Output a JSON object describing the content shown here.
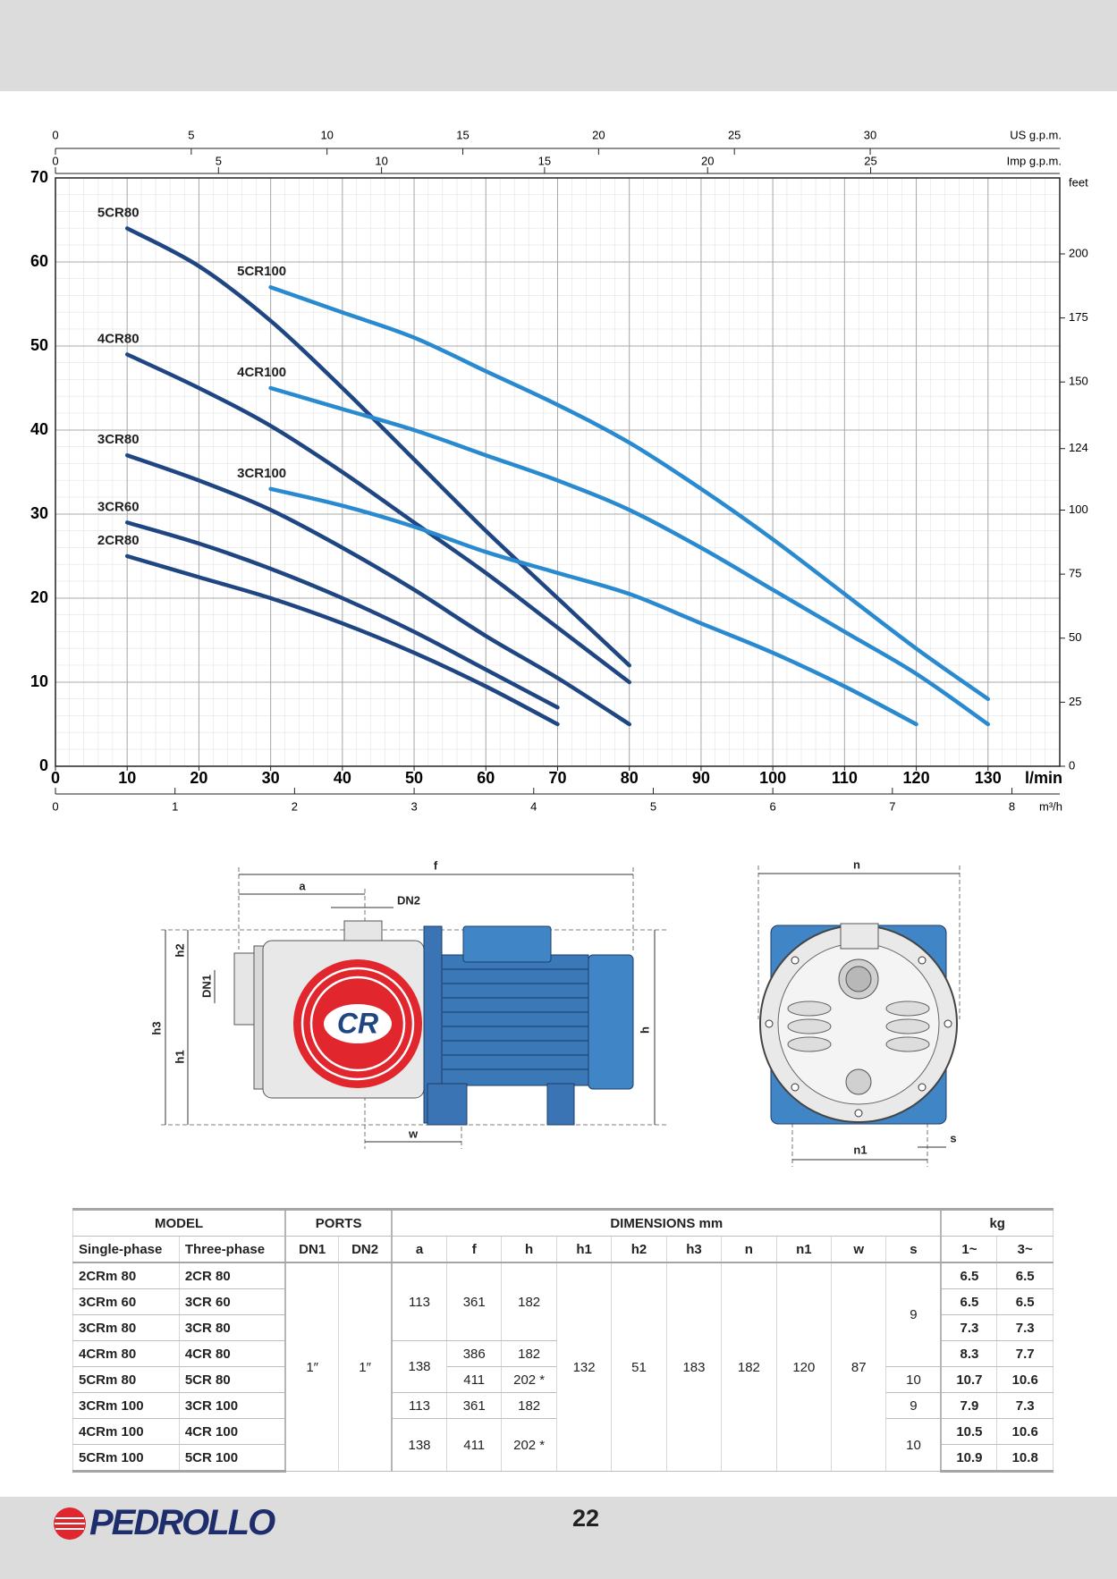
{
  "chart_data": {
    "type": "line",
    "x_label": "l/min",
    "xlim": [
      0,
      140
    ],
    "xticks": [
      0,
      10,
      20,
      30,
      40,
      50,
      60,
      70,
      80,
      90,
      100,
      110,
      120,
      130
    ],
    "ylim": [
      0,
      70
    ],
    "yticks": [
      0,
      10,
      20,
      30,
      40,
      50,
      60,
      70
    ],
    "y2_label": "feet",
    "y2lim": [
      0,
      229.66
    ],
    "y2ticks": [
      0,
      25,
      50,
      75,
      100,
      124,
      150,
      175,
      200
    ],
    "top_axes": [
      {
        "label": "US g.p.m.",
        "xlim": [
          0,
          36.98
        ],
        "xticks": [
          0,
          5,
          10,
          15,
          20,
          25,
          30
        ]
      },
      {
        "label": "Imp g.p.m.",
        "xlim": [
          0,
          30.8
        ],
        "xticks": [
          0,
          5,
          10,
          15,
          20,
          25
        ]
      }
    ],
    "bottom_axis": {
      "label": "m³/h",
      "xlim": [
        0,
        8.4
      ],
      "xticks": [
        0,
        1,
        2,
        3,
        4,
        5,
        6,
        7,
        8
      ]
    },
    "grid": true,
    "series": [
      {
        "name": "5CR80",
        "color": "#1f4682",
        "x": [
          10,
          20,
          30,
          40,
          50,
          60,
          70,
          80
        ],
        "values": [
          64,
          59.5,
          53,
          45,
          36.5,
          28,
          20,
          12
        ]
      },
      {
        "name": "4CR80",
        "color": "#1f4682",
        "x": [
          10,
          20,
          30,
          40,
          50,
          60,
          70,
          80
        ],
        "values": [
          49,
          45,
          40.5,
          35,
          29,
          23,
          16.5,
          10
        ]
      },
      {
        "name": "3CR80",
        "color": "#1f4682",
        "x": [
          10,
          20,
          30,
          40,
          50,
          60,
          70,
          80
        ],
        "values": [
          37,
          34,
          30.5,
          26,
          21,
          15.5,
          10.5,
          5
        ]
      },
      {
        "name": "3CR60",
        "color": "#1f4682",
        "x": [
          10,
          20,
          30,
          40,
          50,
          60,
          70
        ],
        "values": [
          29,
          26.5,
          23.5,
          20,
          16,
          11.5,
          7
        ]
      },
      {
        "name": "2CR80",
        "color": "#1f4682",
        "x": [
          10,
          20,
          30,
          40,
          50,
          60,
          70
        ],
        "values": [
          25,
          22.5,
          20,
          17,
          13.5,
          9.5,
          5
        ]
      },
      {
        "name": "5CR100",
        "color": "#2a8ad0",
        "x": [
          30,
          40,
          50,
          60,
          70,
          80,
          90,
          100,
          110,
          120,
          130
        ],
        "values": [
          57,
          54,
          51,
          47,
          43,
          38.5,
          33,
          27,
          20.5,
          14,
          8
        ]
      },
      {
        "name": "4CR100",
        "color": "#2a8ad0",
        "x": [
          30,
          40,
          50,
          60,
          70,
          80,
          90,
          100,
          110,
          120,
          130
        ],
        "values": [
          45,
          42.5,
          40,
          37,
          34,
          30.5,
          26,
          21,
          16,
          11,
          5
        ]
      },
      {
        "name": "3CR100",
        "color": "#2a8ad0",
        "x": [
          30,
          40,
          50,
          60,
          70,
          80,
          90,
          100,
          110,
          120
        ],
        "values": [
          33,
          31,
          28.5,
          25.5,
          23,
          20.5,
          17,
          13.5,
          9.5,
          5
        ]
      }
    ]
  },
  "drawing": {
    "side_view_labels": [
      "f",
      "a",
      "DN2",
      "h2",
      "DN1",
      "h3",
      "h1",
      "w",
      "h"
    ],
    "badge": "CR",
    "front_view_labels": [
      "n",
      "n1",
      "s"
    ]
  },
  "table": {
    "group_headers": [
      "MODEL",
      "PORTS",
      "DIMENSIONS mm",
      "kg"
    ],
    "headers": [
      "Single-phase",
      "Three-phase",
      "DN1",
      "DN2",
      "a",
      "f",
      "h",
      "h1",
      "h2",
      "h3",
      "n",
      "n1",
      "w",
      "s",
      "1~",
      "3~"
    ],
    "rows": [
      [
        "2CRm 80",
        "2CR 80",
        "1″",
        "1″",
        113,
        361,
        182,
        132,
        51,
        183,
        182,
        120,
        87,
        9,
        6.5,
        6.5
      ],
      [
        "3CRm 60",
        "3CR 60",
        6.5,
        6.5
      ],
      [
        "3CRm 80",
        "3CR 80",
        7.3,
        7.3
      ],
      [
        "4CRm 80",
        "4CR 80",
        138,
        386,
        182,
        8.3,
        7.7
      ],
      [
        "5CRm 80",
        "5CR 80",
        411,
        "202 *",
        10,
        10.7,
        10.6
      ],
      [
        "3CRm 100",
        "3CR 100",
        113,
        361,
        182,
        9,
        7.9,
        7.3
      ],
      [
        "4CRm 100",
        "4CR 100",
        138,
        411,
        "202 *",
        10,
        10.5,
        10.6
      ],
      [
        "5CRm 100",
        "5CR 100",
        10.9,
        10.8
      ]
    ]
  },
  "footer": {
    "brand": "PEDROLLO",
    "page": 22
  }
}
